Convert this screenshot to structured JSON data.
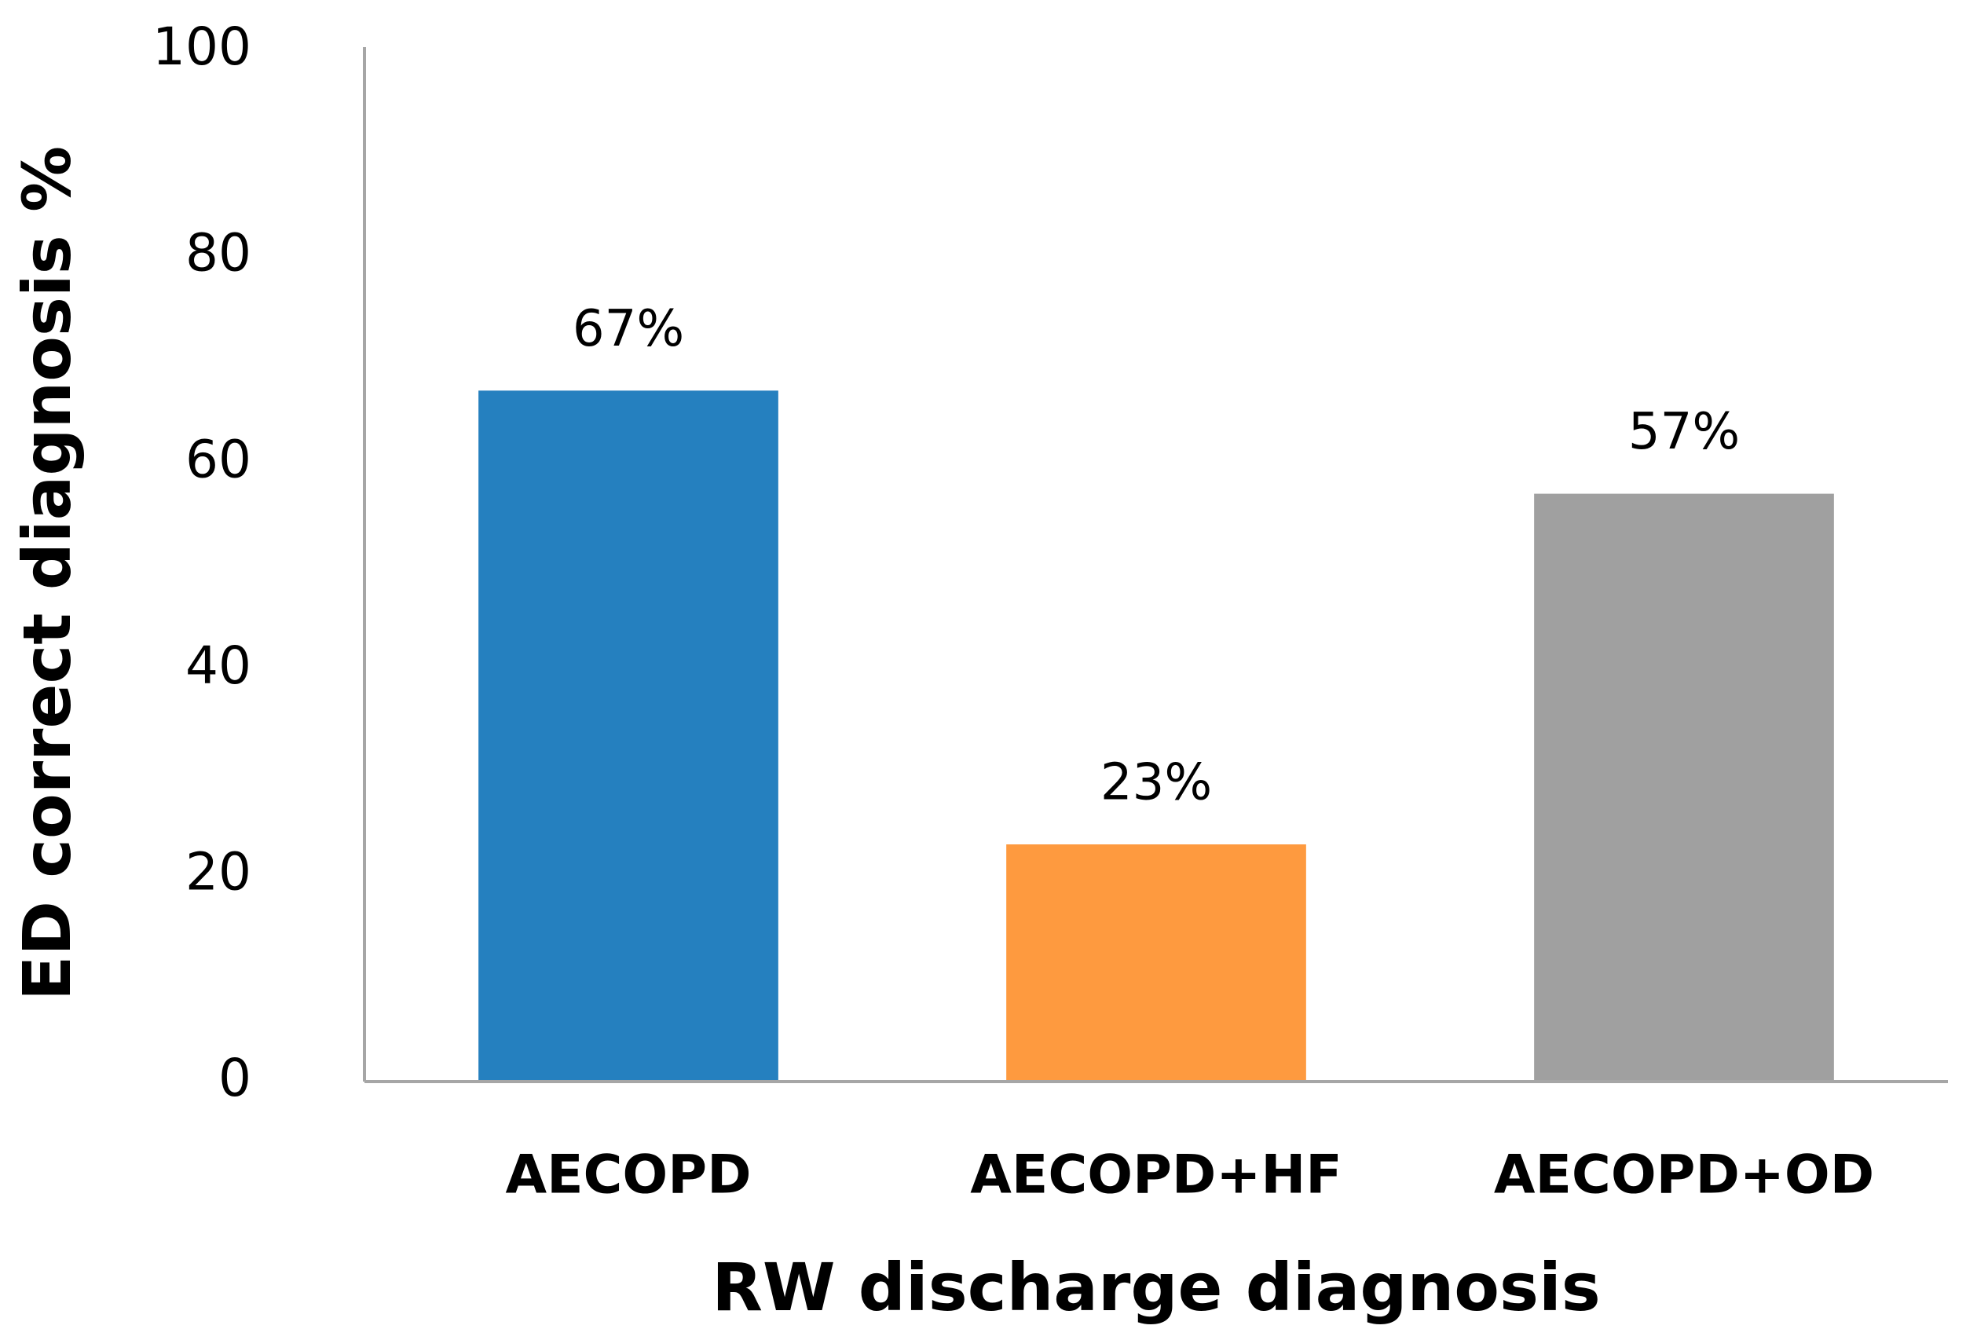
{
  "chart_data": {
    "type": "bar",
    "categories": [
      "AECOPD",
      "AECOPD+HF",
      "AECOPD+OD"
    ],
    "values": [
      67,
      23,
      57
    ],
    "value_labels": [
      "67%",
      "23%",
      "57%"
    ],
    "colors": [
      "#2580bf",
      "#fe9a3f",
      "#a0a0a0"
    ],
    "x_label": "RW discharge diagnosis",
    "y_label": "ED correct diagnosis %",
    "ylim": [
      0,
      100
    ],
    "yticks": [
      0,
      20,
      40,
      60,
      80,
      100
    ],
    "grid": false
  }
}
